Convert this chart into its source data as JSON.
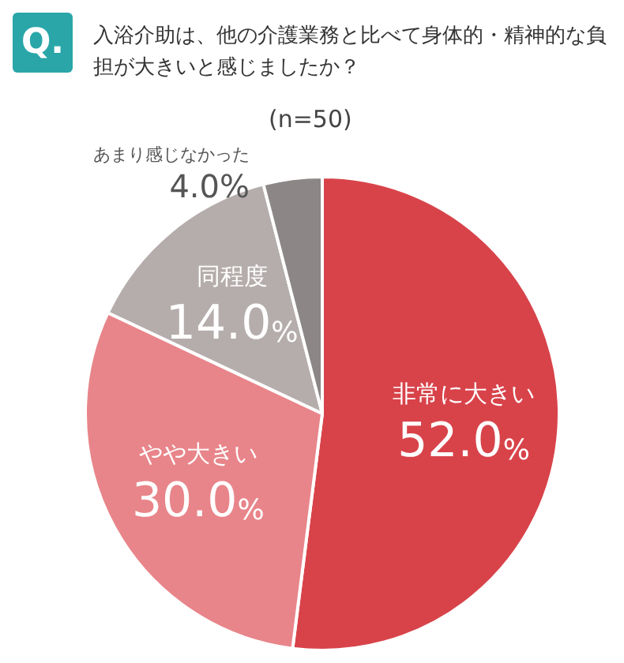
{
  "chart_data": {
    "type": "pie",
    "title": "入浴介助は、他の介護業務と比べて身体的・精神的な負担が大きいと感じましたか？",
    "annotations": [
      "Q.",
      "(n=50)"
    ],
    "categories": [
      "非常に大きい",
      "やや大きい",
      "同程度",
      "あまり感じなかった"
    ],
    "values": [
      52,
      30,
      14,
      4
    ],
    "value_labels": [
      "52.0%",
      "30.0%",
      "14.0%",
      "4.0%"
    ],
    "colors": [
      "#d8434a",
      "#e8858a",
      "#b5adac",
      "#8c8786"
    ],
    "legend": false
  }
}
